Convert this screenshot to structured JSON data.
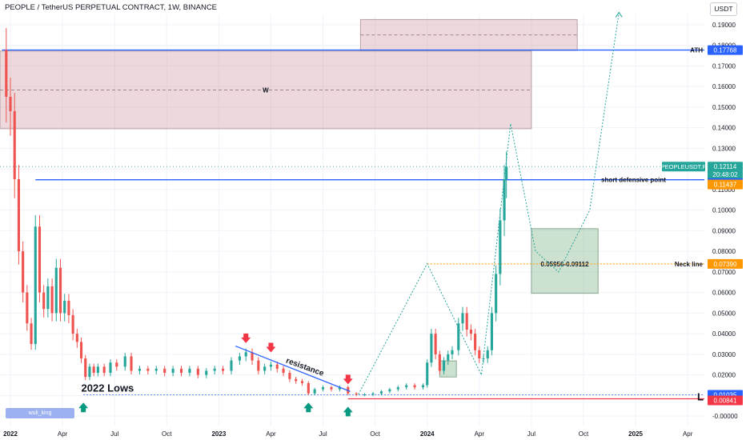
{
  "header": {
    "title": "PEOPLE / TetherUS PERPETUAL CONTRACT, 1W, BINANCE",
    "currency_button": "USDT"
  },
  "watermark": "wuli_king",
  "colors": {
    "up": "#26a69a",
    "down": "#ef5350",
    "blue_line": "#2962ff",
    "red_line": "#f23645",
    "orange": "#ff9800"
  },
  "chart_data": {
    "type": "candlestick",
    "title": "PEOPLE / TetherUS PERPETUAL CONTRACT, 1W, BINANCE",
    "ylim": [
      -0.005,
      0.195
    ],
    "xlim": [
      2021.95,
      2025.33
    ],
    "y_ticks": [
      "0.19000",
      "0.18000",
      "0.17000",
      "0.16000",
      "0.15000",
      "0.14000",
      "0.13000",
      "0.12000",
      "0.11000",
      "0.10000",
      "0.09000",
      "0.08000",
      "0.07000",
      "0.06000",
      "0.05000",
      "0.04000",
      "0.03000",
      "0.02000",
      "0.01000",
      "-0.00000"
    ],
    "x_ticks": [
      {
        "label": "2022",
        "x": 2022.0
      },
      {
        "label": "Apr",
        "x": 2022.25
      },
      {
        "label": "Jul",
        "x": 2022.5
      },
      {
        "label": "Oct",
        "x": 2022.75
      },
      {
        "label": "2023",
        "x": 2023.0
      },
      {
        "label": "Apr",
        "x": 2023.25
      },
      {
        "label": "Jul",
        "x": 2023.5
      },
      {
        "label": "Oct",
        "x": 2023.75
      },
      {
        "label": "2024",
        "x": 2024.0
      },
      {
        "label": "Apr",
        "x": 2024.25
      },
      {
        "label": "Jul",
        "x": 2024.5
      },
      {
        "label": "Oct",
        "x": 2024.75
      },
      {
        "label": "2025",
        "x": 2025.0
      },
      {
        "label": "Apr",
        "x": 2025.25
      }
    ],
    "price_path": [
      [
        2021.96,
        0.1777
      ],
      [
        2021.98,
        0.155
      ],
      [
        2022.0,
        0.148
      ],
      [
        2022.02,
        0.115
      ],
      [
        2022.04,
        0.08
      ],
      [
        2022.06,
        0.06
      ],
      [
        2022.08,
        0.045
      ],
      [
        2022.1,
        0.035
      ],
      [
        2022.12,
        0.092
      ],
      [
        2022.14,
        0.06
      ],
      [
        2022.16,
        0.052
      ],
      [
        2022.18,
        0.063
      ],
      [
        2022.2,
        0.05
      ],
      [
        2022.22,
        0.072
      ],
      [
        2022.24,
        0.05
      ],
      [
        2022.26,
        0.056
      ],
      [
        2022.28,
        0.049
      ],
      [
        2022.3,
        0.04
      ],
      [
        2022.32,
        0.036
      ],
      [
        2022.34,
        0.028
      ],
      [
        2022.36,
        0.019
      ],
      [
        2022.38,
        0.024
      ],
      [
        2022.4,
        0.021
      ],
      [
        2022.42,
        0.024
      ],
      [
        2022.45,
        0.021
      ],
      [
        2022.48,
        0.026
      ],
      [
        2022.51,
        0.024
      ],
      [
        2022.55,
        0.029
      ],
      [
        2022.58,
        0.022
      ],
      [
        2022.62,
        0.023
      ],
      [
        2022.66,
        0.022
      ],
      [
        2022.7,
        0.023
      ],
      [
        2022.74,
        0.021
      ],
      [
        2022.78,
        0.023
      ],
      [
        2022.82,
        0.021
      ],
      [
        2022.86,
        0.023
      ],
      [
        2022.9,
        0.02
      ],
      [
        2022.94,
        0.022
      ],
      [
        2022.98,
        0.023
      ],
      [
        2023.02,
        0.022
      ],
      [
        2023.06,
        0.027
      ],
      [
        2023.1,
        0.029
      ],
      [
        2023.13,
        0.031
      ],
      [
        2023.16,
        0.027
      ],
      [
        2023.19,
        0.022
      ],
      [
        2023.22,
        0.024
      ],
      [
        2023.25,
        0.025
      ],
      [
        2023.28,
        0.023
      ],
      [
        2023.31,
        0.021
      ],
      [
        2023.34,
        0.018
      ],
      [
        2023.37,
        0.017
      ],
      [
        2023.4,
        0.016
      ],
      [
        2023.43,
        0.011
      ],
      [
        2023.46,
        0.013
      ],
      [
        2023.5,
        0.014
      ],
      [
        2023.54,
        0.013
      ],
      [
        2023.58,
        0.014
      ],
      [
        2023.62,
        0.011
      ],
      [
        2023.66,
        0.0105
      ],
      [
        2023.7,
        0.0105
      ],
      [
        2023.74,
        0.011
      ],
      [
        2023.78,
        0.012
      ],
      [
        2023.82,
        0.013
      ],
      [
        2023.86,
        0.014
      ],
      [
        2023.9,
        0.015
      ],
      [
        2023.94,
        0.014
      ],
      [
        2023.98,
        0.015
      ],
      [
        2024.0,
        0.026
      ],
      [
        2024.02,
        0.04
      ],
      [
        2024.04,
        0.03
      ],
      [
        2024.06,
        0.022
      ],
      [
        2024.08,
        0.027
      ],
      [
        2024.1,
        0.03
      ],
      [
        2024.12,
        0.032
      ],
      [
        2024.15,
        0.045
      ],
      [
        2024.17,
        0.05
      ],
      [
        2024.19,
        0.042
      ],
      [
        2024.21,
        0.04
      ],
      [
        2024.23,
        0.032
      ],
      [
        2024.25,
        0.028
      ],
      [
        2024.27,
        0.028
      ],
      [
        2024.29,
        0.032
      ],
      [
        2024.31,
        0.05
      ],
      [
        2024.33,
        0.069
      ],
      [
        2024.35,
        0.095
      ],
      [
        2024.37,
        0.115
      ],
      [
        2024.38,
        0.1211
      ]
    ],
    "overlays": {
      "ath": {
        "price": 0.17768,
        "x_start": 2021.96,
        "label": "ATH",
        "value": "0.17768"
      },
      "short_defensive_point": {
        "price": 0.11473,
        "x_start": 2022.12,
        "label": "short defensive point",
        "value": "0.11473"
      },
      "current_price": {
        "price": 0.12114,
        "symbol": "PEOPLEUSDT.P",
        "value": "0.12114",
        "countdown": "20:48:02"
      },
      "orange_level": {
        "price": 0.11437,
        "value": "0.11437"
      },
      "neck_line": {
        "price": 0.0739,
        "label": "Neck line",
        "value": "0.07390"
      },
      "lows_line": {
        "price": 0.01035,
        "value": "0.01035",
        "label": "2022 Lows"
      },
      "l_line": {
        "price": 0.00841,
        "value": "0.00841",
        "label": "L"
      },
      "supply_zone": {
        "price_top": 0.1772,
        "price_bottom": 0.1395,
        "x_start": 2021.95,
        "x_end": 2024.5,
        "label": "W"
      },
      "upper_zone": {
        "price_top": 0.1925,
        "price_bottom": 0.1775,
        "x_start": 2023.68,
        "x_end": 2024.72
      },
      "target_box": {
        "price_top": 0.091,
        "price_bottom": 0.0596,
        "x_start": 2024.5,
        "x_end": 2024.82,
        "label": "0.05956-0.09112"
      },
      "resistance_line": {
        "from": [
          2023.08,
          0.034
        ],
        "to": [
          2023.63,
          0.012
        ],
        "label": "resistance"
      },
      "down_arrows": [
        [
          2023.13,
          0.037
        ],
        [
          2023.25,
          0.0325
        ],
        [
          2023.62,
          0.017
        ]
      ],
      "up_arrows": [
        [
          2022.35,
          0.005
        ],
        [
          2023.43,
          0.005
        ],
        [
          2023.62,
          0.003
        ]
      ],
      "small_box": {
        "x_start": 2024.06,
        "x_end": 2024.14,
        "price_top": 0.0268,
        "price_bottom": 0.019
      },
      "projection_path": [
        [
          2023.67,
          0.0105
        ],
        [
          2024.0,
          0.074
        ],
        [
          2024.26,
          0.02
        ],
        [
          2024.4,
          0.142
        ],
        [
          2024.52,
          0.08
        ],
        [
          2024.63,
          0.07
        ],
        [
          2024.78,
          0.1
        ],
        [
          2024.92,
          0.196
        ]
      ]
    }
  }
}
